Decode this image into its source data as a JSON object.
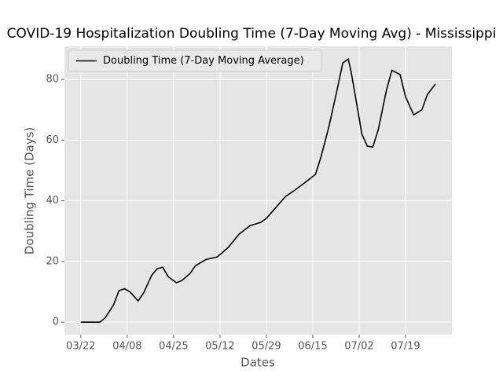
{
  "chart_data": {
    "type": "line",
    "title": "COVID-19 Hospitalization Doubling Time (7-Day Moving Avg) - Mississippi",
    "xlabel": "Dates",
    "ylabel": "Doubling Time (Days)",
    "x": [
      "03/22",
      "03/29",
      "03/31",
      "04/03",
      "04/05",
      "04/07",
      "04/09",
      "04/12",
      "04/14",
      "04/17",
      "04/19",
      "04/21",
      "04/23",
      "04/26",
      "04/28",
      "05/01",
      "05/03",
      "05/07",
      "05/11",
      "05/15",
      "05/19",
      "05/23",
      "05/27",
      "05/29",
      "06/02",
      "06/05",
      "06/08",
      "06/13",
      "06/16",
      "06/18",
      "06/21",
      "06/24",
      "06/26",
      "06/28",
      "06/29",
      "07/01",
      "07/03",
      "07/05",
      "07/07",
      "07/09",
      "07/12",
      "07/14",
      "07/17",
      "07/19",
      "07/22",
      "07/25",
      "07/27",
      "07/30"
    ],
    "series": [
      {
        "name": "Doubling Time (7-Day Moving Average)",
        "color": "#000000",
        "values": [
          0,
          0,
          1.5,
          5.7,
          10.4,
          11,
          10,
          7,
          9.6,
          15.5,
          17.6,
          18.1,
          15,
          13,
          13.7,
          16,
          18.6,
          20.7,
          21.5,
          24.6,
          29,
          31.8,
          32.9,
          34.2,
          38.3,
          41.4,
          43.2,
          46.6,
          48.7,
          54.4,
          64.7,
          76.9,
          85.4,
          86.7,
          82.8,
          72.5,
          62,
          58,
          57.7,
          63.4,
          76.4,
          83,
          81.6,
          74.3,
          68.3,
          70,
          75,
          78.5
        ]
      }
    ],
    "xlim": [
      "03/16",
      "08/05"
    ],
    "xticks": [
      "03/22",
      "04/08",
      "04/25",
      "05/12",
      "05/29",
      "06/15",
      "07/02",
      "07/19"
    ],
    "ylim": [
      -4.1,
      90.9
    ],
    "yticks": [
      0,
      20,
      40,
      60,
      80
    ],
    "grid": true,
    "legend": "upper left"
  }
}
